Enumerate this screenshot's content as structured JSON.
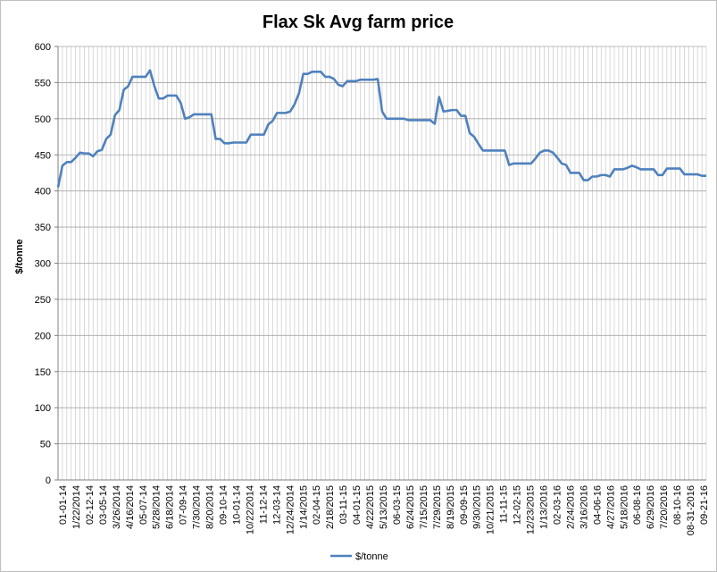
{
  "chart_data": {
    "type": "line",
    "title": "Flax Sk Avg farm price",
    "xlabel": "",
    "ylabel": "$/tonne",
    "ylim": [
      0,
      600
    ],
    "yticks": [
      0,
      50,
      100,
      150,
      200,
      250,
      300,
      350,
      400,
      450,
      500,
      550,
      600
    ],
    "grid": true,
    "legend_position": "bottom",
    "line_color": "#4f81bd",
    "x_tick_labels": [
      "01-01-14",
      "1/22/2014",
      "02-12-14",
      "03-05-14",
      "3/26/2014",
      "4/16/2014",
      "05-07-14",
      "5/28/2014",
      "6/18/2014",
      "07-09-14",
      "7/30/2014",
      "8/20/2014",
      "09-10-14",
      "10-01-14",
      "10/22/2014",
      "11-12-14",
      "12-03-14",
      "12/24/2014",
      "1/14/2015",
      "02-04-15",
      "2/18/2015",
      "03-11-15",
      "04-01-15",
      "4/22/2015",
      "5/13/2015",
      "06-03-15",
      "6/24/2015",
      "7/15/2015",
      "7/29/2015",
      "8/19/2015",
      "09-09-15",
      "9/30/2015",
      "10/21/2015",
      "11-11-15",
      "12-02-15",
      "12/23/2015",
      "1/13/2016",
      "02-03-16",
      "2/24/2016",
      "3/16/2016",
      "04-06-16",
      "4/27/2016",
      "5/18/2016",
      "06-08-16",
      "6/29/2016",
      "7/20/2016",
      "08-10-16",
      "08-31-2016",
      "09-21-16"
    ],
    "series": [
      {
        "name": "$/tonne",
        "values": [
          405,
          435,
          440,
          440,
          446,
          453,
          452,
          452,
          448,
          455,
          457,
          472,
          478,
          505,
          512,
          540,
          545,
          558,
          558,
          558,
          558,
          567,
          545,
          528,
          528,
          532,
          532,
          532,
          522,
          500,
          502,
          506,
          506,
          506,
          506,
          506,
          472,
          472,
          466,
          466,
          467,
          467,
          467,
          467,
          478,
          478,
          478,
          478,
          492,
          497,
          508,
          508,
          508,
          510,
          520,
          535,
          562,
          562,
          565,
          565,
          565,
          558,
          558,
          555,
          547,
          545,
          552,
          552,
          552,
          554,
          554,
          554,
          554,
          555,
          510,
          500,
          500,
          500,
          500,
          500,
          498,
          498,
          498,
          498,
          498,
          498,
          493,
          530,
          510,
          511,
          512,
          512,
          504,
          504,
          480,
          475,
          465,
          456,
          456,
          456,
          456,
          456,
          456,
          436,
          438,
          438,
          438,
          438,
          438,
          445,
          453,
          456,
          456,
          453,
          446,
          438,
          436,
          425,
          425,
          425,
          415,
          415,
          420,
          420,
          422,
          422,
          420,
          430,
          430,
          430,
          432,
          435,
          433,
          430,
          430,
          430,
          430,
          422,
          422,
          431,
          431,
          431,
          431,
          423,
          423,
          423,
          423,
          421,
          421
        ]
      }
    ]
  }
}
